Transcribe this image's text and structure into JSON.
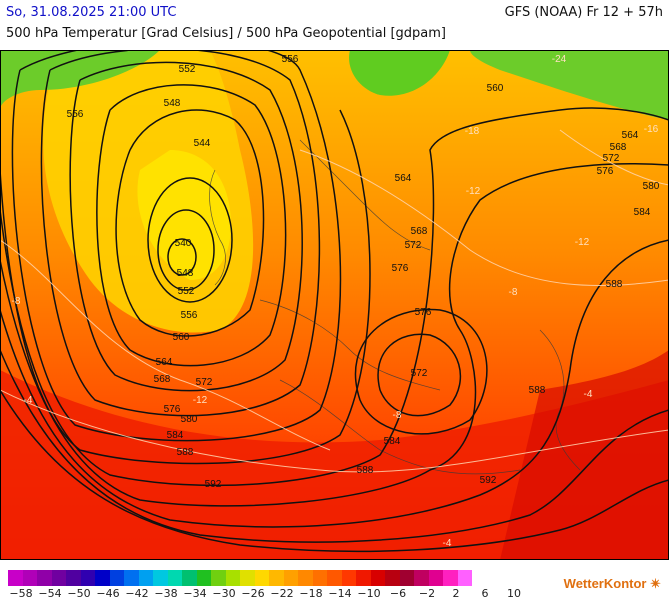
{
  "header": {
    "date_label": "So, 31.08.2025 21:00 UTC",
    "model_label": "GFS (NOAA) Fr 12 + 57h",
    "subtitle": "500 hPa Temperatur [Grad Celsius] / 500 hPa Geopotential [gdpam]"
  },
  "map": {
    "geopotential_labels": [
      "552",
      "556",
      "556",
      "548",
      "544",
      "540",
      "548",
      "552",
      "556",
      "560",
      "564",
      "568",
      "572",
      "576",
      "580",
      "584",
      "588",
      "592",
      "560",
      "564",
      "568",
      "572",
      "576",
      "580",
      "584",
      "588",
      "564",
      "568",
      "572",
      "576",
      "576",
      "572",
      "588",
      "584",
      "588",
      "592"
    ],
    "temperature_labels": [
      "-24",
      "-18",
      "-16",
      "-12",
      "-12",
      "-12",
      "-8",
      "-8",
      "-8",
      "-4",
      "-4",
      "-4"
    ]
  },
  "colorscale": {
    "ticks": [
      "−58",
      "−54",
      "−50",
      "−46",
      "−42",
      "−38",
      "−34",
      "−30",
      "−26",
      "−22",
      "−18",
      "−14",
      "−10",
      "−6",
      "−2",
      "2",
      "6",
      "10"
    ],
    "colors": [
      "#c800c8",
      "#b000b8",
      "#9000a8",
      "#7000a0",
      "#5000a0",
      "#3000b0",
      "#0000c8",
      "#0040e0",
      "#0070f0",
      "#00a0f0",
      "#00c8e0",
      "#00d8b0",
      "#00c070",
      "#20c020",
      "#70d010",
      "#a8e000",
      "#e0e000",
      "#ffd800",
      "#ffb800",
      "#ffa000",
      "#ff8800",
      "#ff7000",
      "#ff5800",
      "#ff3800",
      "#f01800",
      "#d80000",
      "#b80010",
      "#a00030",
      "#c00060",
      "#e00090",
      "#ff20c0",
      "#ff60ff"
    ],
    "brand_main": "WetterKontor",
    "brand_mark": "✴"
  }
}
